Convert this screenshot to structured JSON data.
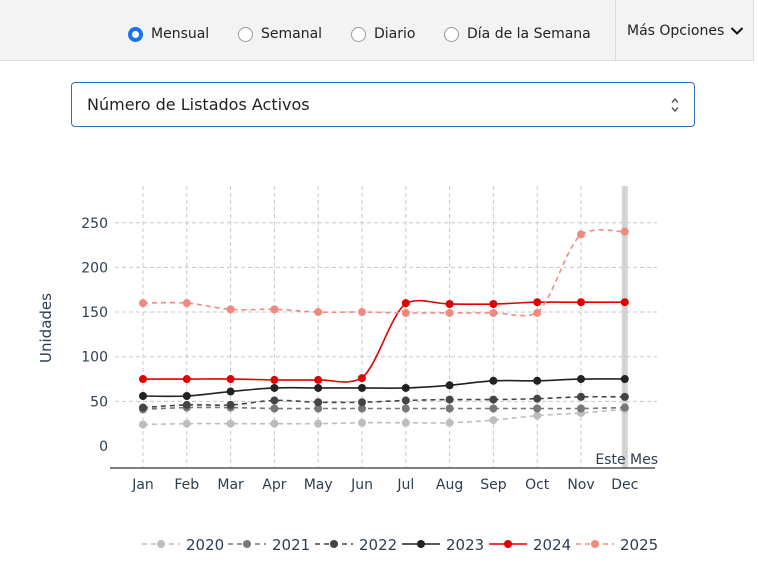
{
  "toolbar": {
    "radios": [
      {
        "label": "Mensual",
        "checked": true
      },
      {
        "label": "Semanal",
        "checked": false
      },
      {
        "label": "Diario",
        "checked": false
      },
      {
        "label": "Día de la Semana",
        "checked": false
      }
    ],
    "more_options_label": "Más Opciones",
    "more_options_icon": "chevron-down-icon"
  },
  "metric_select": {
    "value": "Número de Listados Activos",
    "icon": "up-down-arrows-icon"
  },
  "chart_data": {
    "type": "line",
    "ylabel": "Unidades",
    "xlabel": "",
    "categories": [
      "Jan",
      "Feb",
      "Mar",
      "Apr",
      "May",
      "Jun",
      "Jul",
      "Aug",
      "Sep",
      "Oct",
      "Nov",
      "Dec"
    ],
    "yticks": [
      0,
      50,
      100,
      150,
      200,
      250
    ],
    "ylim": [
      0,
      250
    ],
    "grid": true,
    "current_marker_label": "Este Mes",
    "legend_position": "bottom",
    "series": [
      {
        "name": "2020",
        "color": "#bdbdbd",
        "dashed": true,
        "values": [
          24,
          25,
          25,
          25,
          25,
          26,
          26,
          26,
          29,
          34,
          37,
          41
        ]
      },
      {
        "name": "2021",
        "color": "#777777",
        "dashed": true,
        "values": [
          41,
          43,
          43,
          42,
          42,
          42,
          42,
          42,
          42,
          42,
          42,
          43
        ]
      },
      {
        "name": "2022",
        "color": "#444444",
        "dashed": true,
        "values": [
          43,
          46,
          46,
          51,
          49,
          49,
          51,
          52,
          52,
          53,
          55,
          55
        ]
      },
      {
        "name": "2023",
        "color": "#222222",
        "dashed": false,
        "values": [
          56,
          56,
          61,
          65,
          65,
          65,
          65,
          68,
          73,
          73,
          75,
          75
        ]
      },
      {
        "name": "2024",
        "color": "#e00000",
        "dashed": false,
        "values": [
          75,
          75,
          75,
          74,
          74,
          76,
          160,
          159,
          159,
          161,
          161,
          161
        ]
      },
      {
        "name": "2025",
        "color": "#f08a80",
        "dashed": true,
        "values": [
          160,
          160,
          153,
          153,
          150,
          150,
          149,
          149,
          149,
          149,
          237,
          240
        ]
      }
    ]
  }
}
